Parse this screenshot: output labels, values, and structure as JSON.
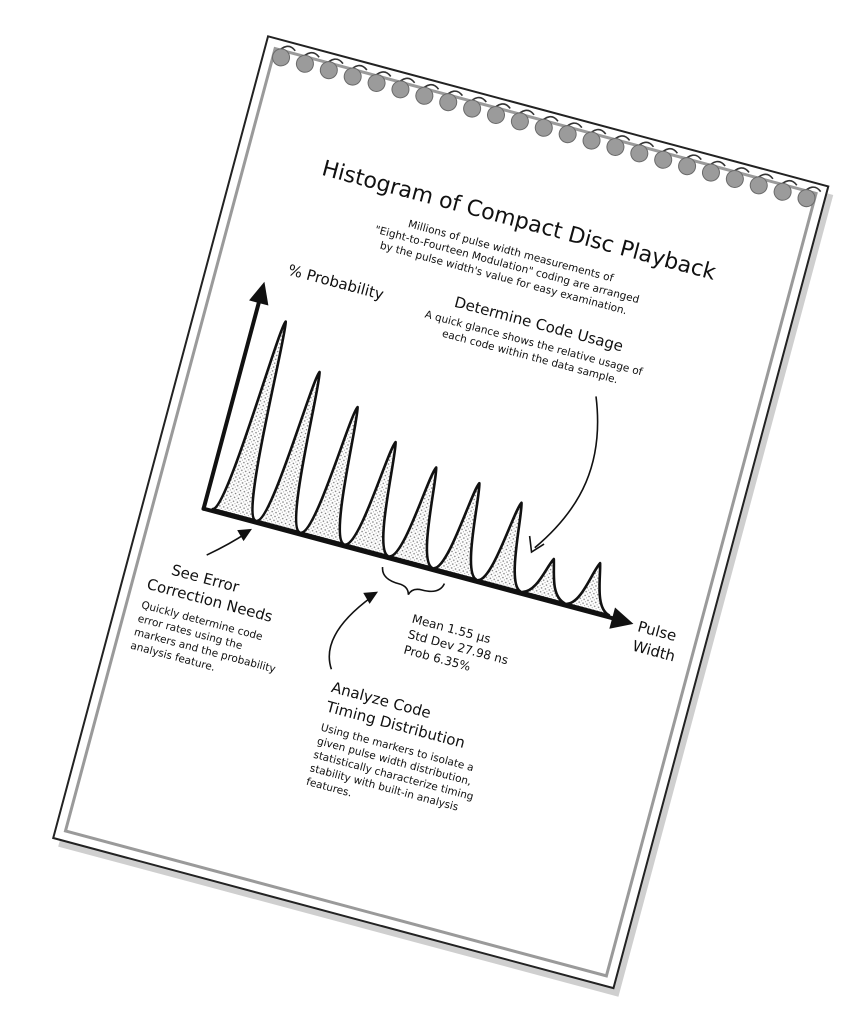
{
  "title": "Histogram of Compact Disc Playback",
  "intro": [
    "Millions of pulse width measurements of",
    "\"Eight-to-Fourteen Modulation\" coding are arranged",
    "by the pulse width's value for easy examination."
  ],
  "code_usage": {
    "heading": "Determine Code Usage",
    "body": [
      "A quick glance shows the relative usage of",
      "each code within the data sample."
    ]
  },
  "y_axis_label": "% Probability",
  "x_axis_label": [
    "Pulse",
    "Width"
  ],
  "stats": {
    "mean": "Mean 1.55 µs",
    "std_dev": "Std Dev 27.98 ns",
    "prob": "Prob 6.35%"
  },
  "error_correction": {
    "heading": [
      "See Error",
      "Correction Needs"
    ],
    "body": [
      "Quickly determine code",
      "error rates using the",
      "markers and the probability",
      "analysis feature."
    ]
  },
  "timing": {
    "heading": [
      "Analyze Code",
      "Timing Distribution"
    ],
    "body": [
      "Using the markers to isolate a",
      "given pulse width distribution,",
      "statistically characterize timing",
      "stability with built-in analysis",
      "features."
    ]
  },
  "histogram": {
    "relative_peak_heights": [
      1.0,
      0.8,
      0.68,
      0.56,
      0.49,
      0.47,
      0.43,
      0.2,
      0.24
    ]
  },
  "colors": {
    "ink": "#111111",
    "ring": "#9b9b9b",
    "page_edge": "#9a9a9a"
  }
}
